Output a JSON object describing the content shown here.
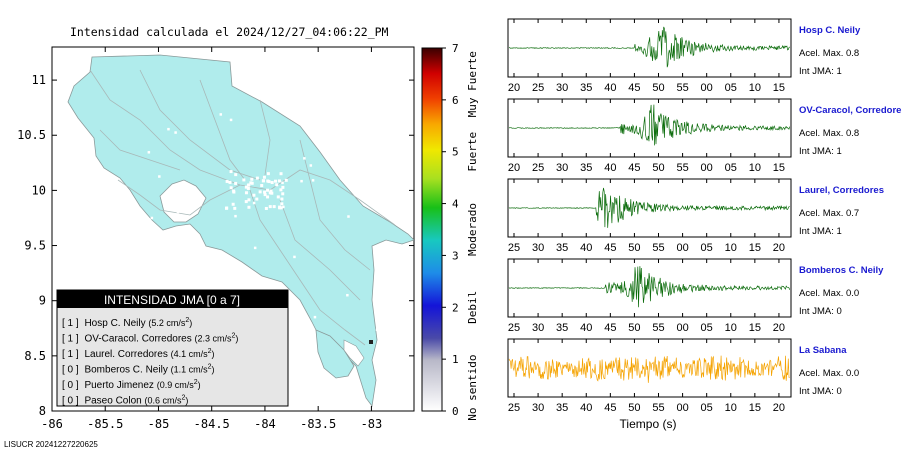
{
  "map": {
    "title": "Intensidad calculada el 2024/12/27_04:06:22_PM",
    "footer": "LISUCR 20241227220625",
    "xticks": [
      "-86",
      "-85.5",
      "-85",
      "-84.5",
      "-84",
      "-83.5",
      "-83"
    ],
    "xtick_values": [
      -86,
      -85.5,
      -85,
      -84.5,
      -84,
      -83.5,
      -83
    ],
    "yticks": [
      "11",
      "10.5",
      "10",
      "9.5",
      "9",
      "8.5",
      "8"
    ],
    "ytick_values": [
      11,
      10.5,
      10,
      9.5,
      9,
      8.5,
      8
    ],
    "xlim": [
      -86,
      -82.6
    ],
    "ylim": [
      8,
      11.3
    ],
    "land_color": "#b0ecec"
  },
  "legend": {
    "title": "INTENSIDAD JMA [0 a 7]",
    "items": [
      {
        "level": "[ 1 ]",
        "name": "Hosp C. Neily",
        "value": "(5.2 cm/s",
        "sup": "2",
        "close": ")"
      },
      {
        "level": "[ 1 ]",
        "name": "OV-Caracol. Corredores",
        "value": "(2.3 cm/s",
        "sup": "2",
        "close": ")"
      },
      {
        "level": "[ 1 ]",
        "name": "Laurel. Corredores",
        "value": "(4.1 cm/s",
        "sup": "2",
        "close": ")"
      },
      {
        "level": "[ 0 ]",
        "name": "Bomberos C. Neily",
        "value": "(1.1 cm/s",
        "sup": "2",
        "close": ")"
      },
      {
        "level": "[ 0 ]",
        "name": "Puerto Jimenez",
        "value": "(0.9 cm/s",
        "sup": "2",
        "close": ")"
      },
      {
        "level": "[ 0 ]",
        "name": "Paseo Colon",
        "value": "(0.6 cm/s",
        "sup": "2",
        "close": ")"
      }
    ]
  },
  "colorbar": {
    "ticks": [
      "0",
      "1",
      "2",
      "3",
      "4",
      "5",
      "6",
      "7"
    ],
    "labels": [
      "No sentido",
      "Debil",
      "Moderado",
      "Fuerte",
      "Muy Fuerte"
    ],
    "range": [
      0,
      7
    ]
  },
  "chart_data": [
    {
      "type": "line",
      "station": "Hosp C. Neily",
      "accel_label": "Acel. Max. 0.8",
      "jma_label": "Int JMA: 1",
      "color": "#0a6b0a",
      "xticks": [
        "20",
        "25",
        "30",
        "35",
        "40",
        "45",
        "50",
        "55",
        "00",
        "05",
        "10",
        "15"
      ],
      "onset": 45,
      "peak_at": 50.5,
      "amplitude": 0.95
    },
    {
      "type": "line",
      "station": "OV-Caracol, Corredore",
      "accel_label": "Acel. Max. 0.8",
      "jma_label": "Int JMA: 1",
      "color": "#0a6b0a",
      "xticks": [
        "20",
        "25",
        "30",
        "35",
        "40",
        "45",
        "50",
        "55",
        "00",
        "05",
        "10",
        "15"
      ],
      "onset": 42,
      "peak_at": 49,
      "amplitude": 0.9
    },
    {
      "type": "line",
      "station": "Laurel, Corredores",
      "accel_label": "Acel. Max. 0.7",
      "jma_label": "Int JMA: 1",
      "color": "#0a6b0a",
      "xticks": [
        "25",
        "30",
        "35",
        "40",
        "45",
        "50",
        "55",
        "00",
        "05",
        "10",
        "15",
        "20"
      ],
      "onset": 42,
      "peak_at": 44,
      "amplitude": 0.9
    },
    {
      "type": "line",
      "station": "Bomberos C. Neily",
      "accel_label": "Acel. Max. 0.0",
      "jma_label": "Int JMA: 0",
      "color": "#0a6b0a",
      "xticks": [
        "25",
        "30",
        "35",
        "40",
        "45",
        "50",
        "55",
        "00",
        "05",
        "10",
        "15",
        "20"
      ],
      "onset": 44,
      "peak_at": 51,
      "amplitude": 0.9
    },
    {
      "type": "line",
      "station": "La Sabana",
      "accel_label": "Acel. Max. 0.0",
      "jma_label": "Int JMA: 0",
      "color": "#f5a300",
      "xticks": [
        "25",
        "30",
        "35",
        "40",
        "45",
        "50",
        "55",
        "00",
        "05",
        "10",
        "15",
        "20"
      ],
      "onset": 20,
      "peak_at": 50,
      "amplitude": 0.8
    }
  ],
  "waveforms": {
    "xlabel": "Tiempo (s)"
  }
}
